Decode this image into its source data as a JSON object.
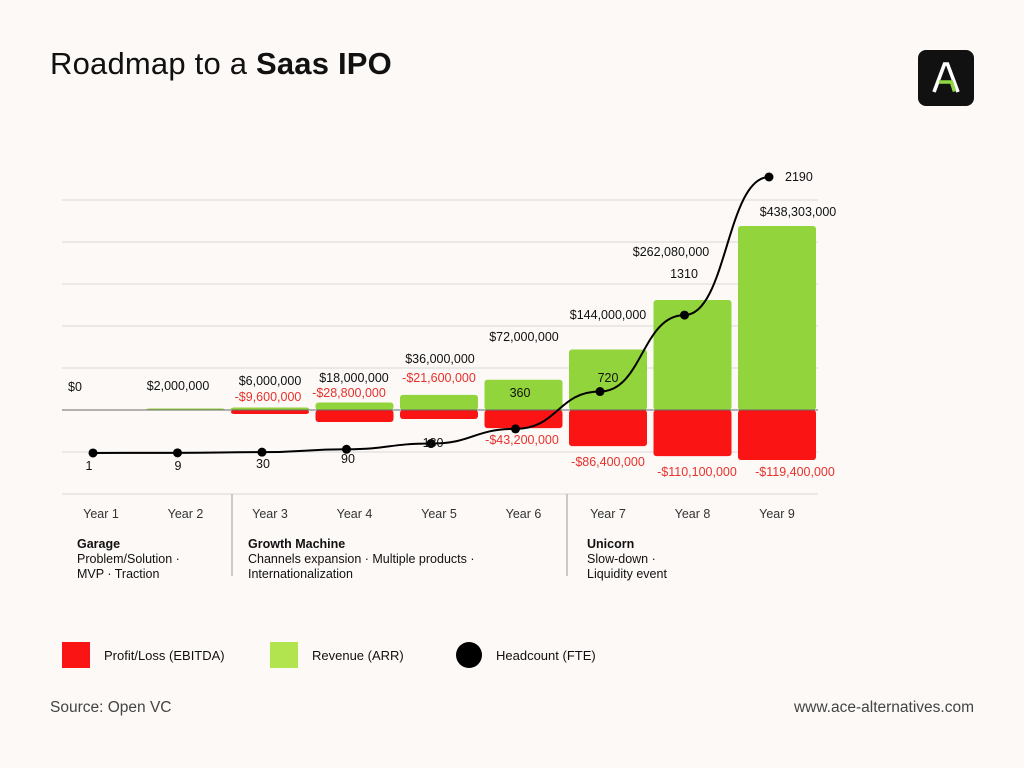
{
  "title": {
    "prefix": "Roadmap to a",
    "bold": "Saas IPO"
  },
  "colors": {
    "background": "#fcf9f7",
    "revenue": "#92d43b",
    "loss": "#fa1414",
    "loss_label": "#e8312c",
    "headcount": "#000000",
    "logo_bg": "#111111",
    "logo_accent": "#8fd640"
  },
  "logo": {
    "icon": "letter-a-logo"
  },
  "chart_data": {
    "type": "bar",
    "categories": [
      "Year 1",
      "Year 2",
      "Year 3",
      "Year 4",
      "Year 5",
      "Year 6",
      "Year 7",
      "Year 8",
      "Year 9"
    ],
    "series": [
      {
        "name": "Revenue (ARR)",
        "values": [
          0,
          2000000,
          6000000,
          18000000,
          36000000,
          72000000,
          144000000,
          262080000,
          438303000
        ],
        "labels": [
          "$0",
          "$2,000,000",
          "$6,000,000",
          "$18,000,000",
          "$36,000,000",
          "$72,000,000",
          "$144,000,000",
          "$262,080,000",
          "$438,303,000"
        ]
      },
      {
        "name": "Profit/Loss (EBITDA)",
        "values": [
          null,
          null,
          -9600000,
          -28800000,
          -21600000,
          -43200000,
          -86400000,
          -110100000,
          -119400000
        ],
        "labels": [
          "",
          "",
          "-$9,600,000",
          "-$28,800,000",
          "-$21,600,000",
          "-$43,200,000",
          "-$86,400,000",
          "-$110,100,000",
          "-$119,400,000"
        ]
      },
      {
        "name": "Headcount (FTE)",
        "type": "line",
        "values": [
          1,
          9,
          30,
          90,
          180,
          360,
          720,
          1310,
          2190
        ],
        "labels": [
          "1",
          "9",
          "30",
          "90",
          "180",
          "360",
          "720",
          "1310",
          "2190"
        ]
      }
    ],
    "grid": true,
    "legend_position": "bottom"
  },
  "phases": [
    {
      "name": "Garage",
      "description": "Problem/Solution · MVP · Traction"
    },
    {
      "name": "Growth Machine",
      "description": "Channels expansion · Multiple products · Internationalization"
    },
    {
      "name": "Unicorn",
      "description": "Slow-down · Liquidity event"
    }
  ],
  "legend": [
    {
      "label": "Profit/Loss (EBITDA)",
      "kind": "swatch",
      "color": "#fa1414"
    },
    {
      "label": "Revenue (ARR)",
      "kind": "swatch",
      "color": "#b2e44f"
    },
    {
      "label": "Headcount (FTE)",
      "kind": "dot",
      "color": "#000000"
    }
  ],
  "footer": {
    "source": "Source: Open VC",
    "website": "www.ace-alternatives.com"
  }
}
